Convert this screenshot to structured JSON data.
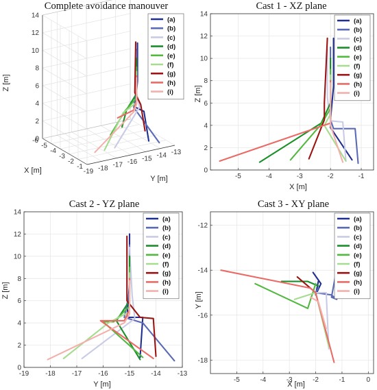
{
  "chart_data": {
    "legend_labels": [
      "(a)",
      "(b)",
      "(c)",
      "(d)",
      "(e)",
      "(f)",
      "(g)",
      "(h)",
      "(i)"
    ],
    "series_colors": [
      "#1f2f8f",
      "#5a6ab6",
      "#c9cbe6",
      "#1b8f2a",
      "#52b83f",
      "#a6dc8f",
      "#9a1414",
      "#ea6b66",
      "#f3b0ab"
    ],
    "panels": [
      {
        "title": "Complete avoidance manouver",
        "type": "line3d",
        "xlabel": "Y [m]",
        "ylabel": "X [m]",
        "zlabel": "Z [m]",
        "x_ticks": [
          "-19",
          "-18",
          "-17",
          "-16",
          "-15",
          "-14",
          "-13"
        ],
        "y_ticks": [
          "-6",
          "-5",
          "-4",
          "-3",
          "-2",
          "-1"
        ],
        "z_ticks": [
          "0",
          "2",
          "4",
          "6",
          "8",
          "10",
          "12",
          "14"
        ],
        "xlim": [
          -19,
          -13
        ],
        "ylim": [
          -6,
          -1
        ],
        "zlim": [
          0,
          14
        ],
        "series": [
          {
            "name": "(a)",
            "points": [
              [
                -15.0,
                -1.9,
                11.8
              ],
              [
                -15.0,
                -1.9,
                7.5
              ],
              [
                -15.1,
                -2.0,
                4.5
              ],
              [
                -14.5,
                -2.0,
                3.8
              ],
              [
                -14.6,
                -1.3,
                0.9
              ]
            ]
          },
          {
            "name": "(b)",
            "points": [
              [
                -15.0,
                -2.0,
                11.0
              ],
              [
                -15.0,
                -2.0,
                6.8
              ],
              [
                -15.2,
                -2.0,
                4.5
              ],
              [
                -14.0,
                -1.1,
                0.6
              ]
            ]
          },
          {
            "name": "(c)",
            "points": [
              [
                -15.0,
                -2.1,
                10.8
              ],
              [
                -15.0,
                -2.1,
                6.5
              ],
              [
                -14.8,
                -2.0,
                4.4
              ],
              [
                -16.8,
                -1.5,
                0.8
              ]
            ]
          },
          {
            "name": "(d)",
            "points": [
              [
                -15.0,
                -2.0,
                10.0
              ],
              [
                -15.0,
                -2.0,
                6.0
              ],
              [
                -15.5,
                -2.3,
                4.2
              ],
              [
                -14.6,
                -4.3,
                0.7
              ]
            ]
          },
          {
            "name": "(e)",
            "points": [
              [
                -15.0,
                -2.0,
                9.0
              ],
              [
                -15.0,
                -2.0,
                5.5
              ],
              [
                -15.6,
                -2.3,
                4.1
              ],
              [
                -16.0,
                -3.3,
                0.9
              ]
            ]
          },
          {
            "name": "(f)",
            "points": [
              [
                -15.0,
                -2.0,
                8.5
              ],
              [
                -15.0,
                -2.0,
                5.0
              ],
              [
                -15.8,
                -2.2,
                4.0
              ],
              [
                -17.5,
                -1.5,
                0.8
              ]
            ]
          },
          {
            "name": "(g)",
            "points": [
              [
                -15.0,
                -2.1,
                11.8
              ],
              [
                -15.0,
                -2.2,
                6.0
              ],
              [
                -14.6,
                -2.2,
                4.5
              ],
              [
                -14.0,
                -2.7,
                1.0
              ]
            ]
          },
          {
            "name": "(h)",
            "points": [
              [
                -15.0,
                -2.0,
                8.0
              ],
              [
                -15.0,
                -2.0,
                5.2
              ],
              [
                -15.2,
                -2.0,
                4.2
              ],
              [
                -14.1,
                -5.6,
                0.8
              ]
            ]
          },
          {
            "name": "(i)",
            "points": [
              [
                -15.0,
                -2.0,
                7.8
              ],
              [
                -15.0,
                -2.0,
                4.8
              ],
              [
                -15.2,
                -2.0,
                4.0
              ],
              [
                -18.1,
                -1.6,
                0.7
              ]
            ]
          }
        ]
      },
      {
        "title": "Cast 1 - XZ plane",
        "type": "line",
        "xlabel": "X [m]",
        "ylabel": "Z [m]",
        "x_ticks": [
          "-5",
          "-4",
          "-3",
          "-2",
          "-1"
        ],
        "y_ticks": [
          "0",
          "2",
          "4",
          "6",
          "8",
          "10",
          "12",
          "14"
        ],
        "xlim": [
          -5.9,
          -0.6
        ],
        "ylim": [
          0,
          14
        ],
        "series": [
          {
            "name": "(a)",
            "points": [
              [
                -1.9,
                11.8
              ],
              [
                -1.9,
                7.5
              ],
              [
                -2.0,
                4.5
              ],
              [
                -2.0,
                3.8
              ],
              [
                -1.3,
                0.9
              ]
            ]
          },
          {
            "name": "(b)",
            "points": [
              [
                -2.0,
                11.0
              ],
              [
                -2.0,
                6.8
              ],
              [
                -2.0,
                4.5
              ],
              [
                -1.9,
                3.7
              ],
              [
                -1.2,
                3.7
              ],
              [
                -1.1,
                0.6
              ]
            ]
          },
          {
            "name": "(c)",
            "points": [
              [
                -2.1,
                10.8
              ],
              [
                -2.1,
                6.5
              ],
              [
                -2.0,
                4.4
              ],
              [
                -1.6,
                4.3
              ],
              [
                -1.5,
                0.8
              ]
            ]
          },
          {
            "name": "(d)",
            "points": [
              [
                -2.0,
                10.0
              ],
              [
                -2.0,
                6.0
              ],
              [
                -2.3,
                4.2
              ],
              [
                -4.3,
                0.7
              ]
            ]
          },
          {
            "name": "(e)",
            "points": [
              [
                -2.0,
                9.0
              ],
              [
                -2.0,
                5.5
              ],
              [
                -2.3,
                4.1
              ],
              [
                -3.3,
                0.9
              ]
            ]
          },
          {
            "name": "(f)",
            "points": [
              [
                -2.0,
                8.5
              ],
              [
                -2.0,
                5.0
              ],
              [
                -2.2,
                4.0
              ],
              [
                -1.5,
                0.8
              ]
            ]
          },
          {
            "name": "(g)",
            "points": [
              [
                -2.1,
                11.8
              ],
              [
                -2.2,
                6.0
              ],
              [
                -2.2,
                4.5
              ],
              [
                -2.7,
                1.0
              ]
            ]
          },
          {
            "name": "(h)",
            "points": [
              [
                -2.0,
                8.0
              ],
              [
                -2.0,
                5.2
              ],
              [
                -2.0,
                4.2
              ],
              [
                -5.6,
                0.8
              ]
            ]
          },
          {
            "name": "(i)",
            "points": [
              [
                -2.0,
                7.8
              ],
              [
                -2.0,
                4.8
              ],
              [
                -2.0,
                4.0
              ],
              [
                -1.6,
                0.7
              ]
            ]
          }
        ]
      },
      {
        "title": "Cast 2 - YZ plane",
        "type": "line",
        "xlabel": "Y [m]",
        "ylabel": "Z [m]",
        "x_ticks": [
          "-19",
          "-18",
          "-17",
          "-16",
          "-15",
          "-14",
          "-13"
        ],
        "y_ticks": [
          "0",
          "2",
          "4",
          "6",
          "8",
          "10",
          "12",
          "14"
        ],
        "xlim": [
          -19,
          -13
        ],
        "ylim": [
          0,
          14
        ],
        "series": [
          {
            "name": "(a)",
            "points": [
              [
                -15.0,
                12.0
              ],
              [
                -15.0,
                7.5
              ],
              [
                -15.1,
                4.5
              ],
              [
                -14.5,
                4.5
              ],
              [
                -14.6,
                0.9
              ]
            ]
          },
          {
            "name": "(b)",
            "points": [
              [
                -15.0,
                11.0
              ],
              [
                -15.0,
                6.8
              ],
              [
                -15.2,
                4.5
              ],
              [
                -14.5,
                4.0
              ],
              [
                -13.3,
                0.6
              ]
            ]
          },
          {
            "name": "(c)",
            "points": [
              [
                -15.0,
                10.8
              ],
              [
                -14.9,
                6.5
              ],
              [
                -14.8,
                4.4
              ],
              [
                -16.8,
                0.8
              ]
            ]
          },
          {
            "name": "(d)",
            "points": [
              [
                -15.0,
                10.0
              ],
              [
                -15.0,
                6.0
              ],
              [
                -15.5,
                4.2
              ],
              [
                -14.6,
                0.7
              ]
            ]
          },
          {
            "name": "(e)",
            "points": [
              [
                -15.0,
                9.0
              ],
              [
                -15.0,
                5.5
              ],
              [
                -15.6,
                4.1
              ],
              [
                -16.0,
                4.1
              ],
              [
                -14.5,
                0.9
              ]
            ]
          },
          {
            "name": "(f)",
            "points": [
              [
                -15.0,
                8.5
              ],
              [
                -15.0,
                5.0
              ],
              [
                -15.8,
                4.0
              ],
              [
                -17.5,
                0.8
              ]
            ]
          },
          {
            "name": "(g)",
            "points": [
              [
                -15.1,
                11.8
              ],
              [
                -15.1,
                6.0
              ],
              [
                -14.6,
                4.5
              ],
              [
                -14.1,
                4.4
              ],
              [
                -14.0,
                1.0
              ]
            ]
          },
          {
            "name": "(h)",
            "points": [
              [
                -15.0,
                8.0
              ],
              [
                -15.0,
                5.2
              ],
              [
                -15.2,
                4.2
              ],
              [
                -16.1,
                4.2
              ],
              [
                -14.1,
                0.8
              ]
            ]
          },
          {
            "name": "(i)",
            "points": [
              [
                -15.0,
                7.8
              ],
              [
                -15.0,
                4.8
              ],
              [
                -15.2,
                4.0
              ],
              [
                -18.1,
                0.7
              ]
            ]
          }
        ]
      },
      {
        "title": "Cast 3 - XY plane",
        "type": "line",
        "xlabel": "X [m]",
        "ylabel": "Y [m]",
        "x_ticks": [
          "-5",
          "-4",
          "-3",
          "-2",
          "-1",
          "0"
        ],
        "y_ticks": [
          "-18",
          "-16",
          "-14",
          "-12"
        ],
        "xlim": [
          -6,
          0.2
        ],
        "ylim": [
          -18.6,
          -11.4
        ],
        "series": [
          {
            "name": "(a)",
            "points": [
              [
                -2.1,
                -14.1
              ],
              [
                -1.8,
                -14.6
              ],
              [
                -2.0,
                -15.1
              ],
              [
                -1.9,
                -14.5
              ]
            ]
          },
          {
            "name": "(b)",
            "points": [
              [
                -1.9,
                -14.8
              ],
              [
                -2.0,
                -15.0
              ],
              [
                -1.4,
                -15.1
              ],
              [
                -1.2,
                -15.3
              ],
              [
                -1.4,
                -15.2
              ],
              [
                -1.1,
                -13.3
              ]
            ]
          },
          {
            "name": "(c)",
            "points": [
              [
                -2.0,
                -15.0
              ],
              [
                -1.6,
                -15.0
              ],
              [
                -1.5,
                -17.5
              ]
            ]
          },
          {
            "name": "(d)",
            "points": [
              [
                -3.3,
                -14.5
              ],
              [
                -2.3,
                -14.5
              ],
              [
                -1.9,
                -14.7
              ]
            ]
          },
          {
            "name": "(e)",
            "points": [
              [
                -4.3,
                -14.6
              ],
              [
                -2.3,
                -15.7
              ],
              [
                -2.0,
                -14.6
              ]
            ]
          },
          {
            "name": "(f)",
            "points": [
              [
                -2.8,
                -15.3
              ],
              [
                -2.0,
                -15.0
              ],
              [
                -1.5,
                -17.4
              ]
            ]
          },
          {
            "name": "(g)",
            "points": [
              [
                -2.7,
                -14.3
              ],
              [
                -2.2,
                -14.8
              ],
              [
                -2.0,
                -15.0
              ]
            ]
          },
          {
            "name": "(h)",
            "points": [
              [
                -5.6,
                -14.0
              ],
              [
                -2.2,
                -14.8
              ],
              [
                -2.0,
                -15.0
              ],
              [
                -1.3,
                -18.1
              ]
            ]
          },
          {
            "name": "(i)",
            "points": [
              [
                -2.2,
                -15.2
              ],
              [
                -1.9,
                -15.4
              ],
              [
                -1.6,
                -16.6
              ]
            ]
          }
        ]
      }
    ]
  }
}
